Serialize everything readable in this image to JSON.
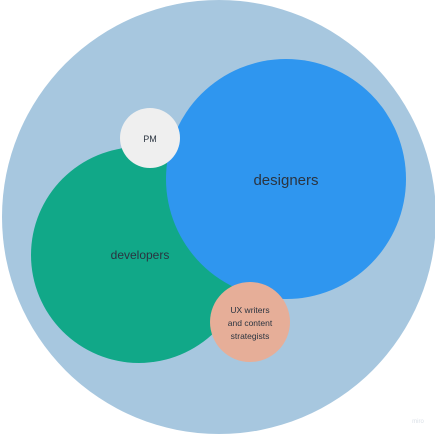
{
  "diagram": {
    "circles": {
      "outer": {
        "color": "#a7c7df"
      },
      "designers": {
        "label": "designers",
        "color": "#2f96ef"
      },
      "developers": {
        "label": "developers",
        "color": "#11a888"
      },
      "pm": {
        "label": "PM",
        "color": "#efefef"
      },
      "ux_writers": {
        "label_lines": [
          "UX writers",
          "and content",
          "strategists"
        ],
        "color": "#e6ae98"
      }
    },
    "watermark": "miro"
  }
}
